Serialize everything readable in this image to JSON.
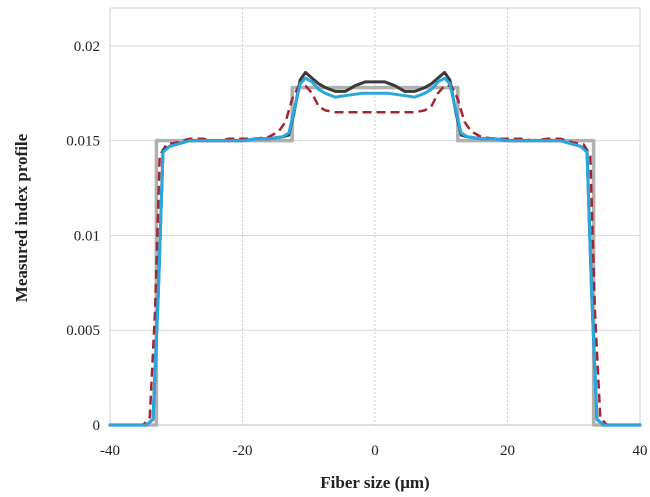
{
  "chart_data": {
    "type": "line",
    "title": "",
    "xlabel": "Fiber size (μm)",
    "ylabel": "Measured index profile",
    "xlim": [
      -40,
      40
    ],
    "ylim": [
      0,
      0.022
    ],
    "x_ticks": [
      -40,
      -20,
      0,
      20,
      40
    ],
    "x_tick_labels": [
      "-40",
      "-20",
      "0",
      "20",
      "40"
    ],
    "y_ticks": [
      0,
      0.005,
      0.01,
      0.015,
      0.02
    ],
    "y_tick_labels": [
      "0",
      "0.005",
      "0.01",
      "0.015",
      "0.02"
    ],
    "grid": true,
    "legend": "none",
    "series": [
      {
        "color": "#b0b0b0",
        "style": "solid",
        "width": 3.5,
        "x": [
          -40,
          -33,
          -33,
          -12.5,
          -12.5,
          12.5,
          12.5,
          33,
          33,
          40
        ],
        "y": [
          0,
          0,
          0.015,
          0.015,
          0.0178,
          0.0178,
          0.015,
          0.015,
          0,
          0
        ]
      },
      {
        "color": "#a32638",
        "style": "dashed",
        "width": 2.5,
        "x": [
          -40,
          -35,
          -34,
          -33.2,
          -32.5,
          -31.5,
          -30,
          -28,
          -26,
          -24,
          -22,
          -20,
          -18,
          -16,
          -14.5,
          -13.5,
          -12.5,
          -11.5,
          -10.5,
          -9.5,
          -8.5,
          -7.5,
          -6,
          -4,
          -2,
          0,
          2,
          4,
          6,
          7.5,
          8.5,
          9.5,
          10.5,
          11.5,
          12.5,
          13.5,
          14.5,
          16,
          18,
          20,
          22,
          24,
          26,
          28,
          30,
          31.5,
          32.5,
          33.2,
          34,
          35,
          40
        ],
        "y": [
          0,
          0,
          0.0004,
          0.006,
          0.0142,
          0.0148,
          0.0149,
          0.0151,
          0.0151,
          0.015,
          0.0151,
          0.0151,
          0.0151,
          0.0152,
          0.0155,
          0.016,
          0.0172,
          0.0179,
          0.0179,
          0.0175,
          0.0168,
          0.0166,
          0.0165,
          0.0165,
          0.0165,
          0.0165,
          0.0165,
          0.0165,
          0.0165,
          0.0166,
          0.0168,
          0.0175,
          0.0179,
          0.0179,
          0.0172,
          0.016,
          0.0155,
          0.0152,
          0.0151,
          0.0151,
          0.0151,
          0.015,
          0.0151,
          0.0151,
          0.0149,
          0.0148,
          0.0142,
          0.006,
          0.0004,
          0,
          0
        ]
      },
      {
        "color": "#3a3a3a",
        "style": "solid",
        "width": 3,
        "x": [
          -40,
          -34.5,
          -33.5,
          -32.7,
          -32,
          -31,
          -30,
          -28,
          -26,
          -24,
          -22,
          -20,
          -18,
          -16,
          -14,
          -13,
          -12.2,
          -11.3,
          -10.5,
          -9.5,
          -8.5,
          -7.5,
          -6,
          -4.5,
          -3,
          -1.5,
          0,
          1.5,
          3,
          4.5,
          6,
          7.5,
          8.5,
          9.5,
          10.5,
          11.3,
          12.2,
          13,
          14,
          16,
          18,
          20,
          22,
          24,
          26,
          28,
          30,
          31,
          32,
          32.7,
          33.5,
          34.5,
          40
        ],
        "y": [
          0,
          0,
          0.0003,
          0.007,
          0.0145,
          0.0147,
          0.0148,
          0.015,
          0.015,
          0.015,
          0.015,
          0.015,
          0.0151,
          0.0151,
          0.0152,
          0.0153,
          0.0165,
          0.0182,
          0.0186,
          0.0183,
          0.018,
          0.0178,
          0.0176,
          0.0176,
          0.0179,
          0.0181,
          0.0181,
          0.0181,
          0.0179,
          0.0176,
          0.0176,
          0.0178,
          0.018,
          0.0183,
          0.0186,
          0.0182,
          0.0165,
          0.0153,
          0.0152,
          0.0151,
          0.0151,
          0.015,
          0.015,
          0.015,
          0.015,
          0.015,
          0.0148,
          0.0147,
          0.0145,
          0.007,
          0.0003,
          0,
          0
        ]
      },
      {
        "color": "#2aa7dc",
        "style": "solid",
        "width": 3,
        "x": [
          -40,
          -34.5,
          -33.5,
          -32.7,
          -32,
          -31,
          -30,
          -28,
          -26,
          -24,
          -22,
          -20,
          -18,
          -16,
          -14,
          -13,
          -12.2,
          -11.3,
          -10.5,
          -9.5,
          -8.5,
          -7.5,
          -6,
          -4,
          -2,
          0,
          2,
          4,
          6,
          7.5,
          8.5,
          9.5,
          10.5,
          11.3,
          12.2,
          13,
          14,
          16,
          18,
          20,
          22,
          24,
          26,
          28,
          30,
          31,
          32,
          32.7,
          33.5,
          34.5,
          40
        ],
        "y": [
          0,
          0,
          0.0003,
          0.007,
          0.0144,
          0.0147,
          0.0148,
          0.015,
          0.015,
          0.015,
          0.015,
          0.015,
          0.0151,
          0.0151,
          0.0152,
          0.0154,
          0.0166,
          0.018,
          0.0183,
          0.0181,
          0.0177,
          0.0175,
          0.0173,
          0.0174,
          0.0175,
          0.0175,
          0.0175,
          0.0174,
          0.0173,
          0.0175,
          0.0177,
          0.0181,
          0.0183,
          0.018,
          0.0166,
          0.0154,
          0.0152,
          0.0151,
          0.0151,
          0.015,
          0.015,
          0.015,
          0.015,
          0.015,
          0.0148,
          0.0147,
          0.0144,
          0.007,
          0.0003,
          0,
          0
        ]
      }
    ]
  }
}
